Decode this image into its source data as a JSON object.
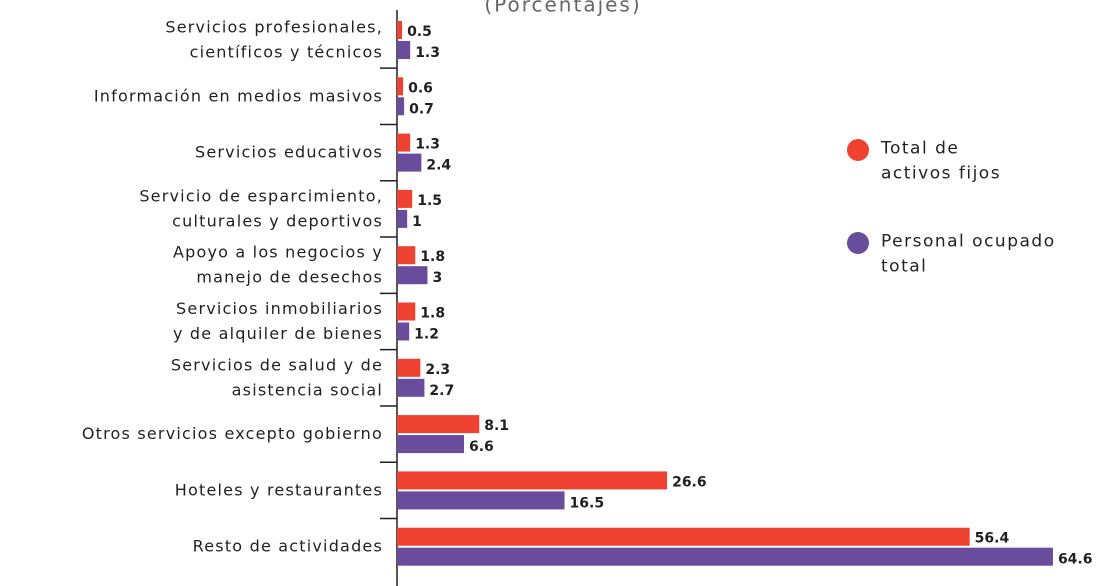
{
  "chart_data": {
    "type": "barh",
    "title": "(Porcentajes)",
    "categories": [
      "Servicios profesionales,\ncientíficos y técnicos",
      "Información en medios masivos",
      "Servicios educativos",
      "Servicio de esparcimiento,\nculturales y deportivos",
      "Apoyo a los negocios y\nmanejo de desechos",
      "Servicios inmobiliarios\ny de alquiler de bienes",
      "Servicios de salud y de\nasistencia social",
      "Otros servicios excepto gobierno",
      "Hoteles y restaurantes",
      "Resto de actividades"
    ],
    "series": [
      {
        "name": "Total de\nactivos fijos",
        "color": "#ef4130",
        "values": [
          0.5,
          0.6,
          1.3,
          1.5,
          1.8,
          1.8,
          2.3,
          8.1,
          26.6,
          56.4
        ]
      },
      {
        "name": "Personal ocupado\ntotal",
        "color": "#6a4c9c",
        "values": [
          1.3,
          0.7,
          2.4,
          1.0,
          3.0,
          1.2,
          2.7,
          6.6,
          16.5,
          64.6
        ]
      }
    ],
    "xlim": [
      0,
      65
    ]
  }
}
